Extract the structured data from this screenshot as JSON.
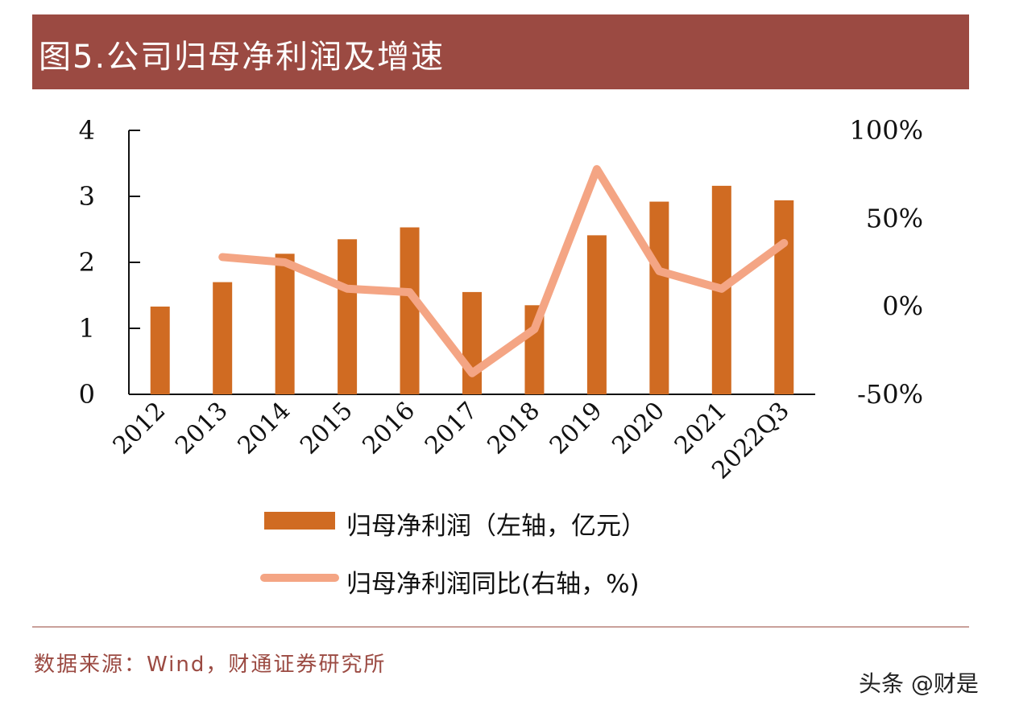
{
  "header": {
    "title": "图5.公司归母净利润及增速"
  },
  "chart_data": {
    "type": "bar+line",
    "title": "图5.公司归母净利润及增速",
    "categories": [
      "2012",
      "2013",
      "2014",
      "2015",
      "2016",
      "2017",
      "2018",
      "2019",
      "2020",
      "2021",
      "2022Q3"
    ],
    "series": [
      {
        "name": "归母净利润（左轴，亿元）",
        "type": "bar",
        "axis": "left",
        "color": "#d06b22",
        "values": [
          1.33,
          1.7,
          2.13,
          2.35,
          2.53,
          1.55,
          1.35,
          2.41,
          2.92,
          3.16,
          2.94
        ]
      },
      {
        "name": "归母净利润同比(右轴，%)",
        "type": "line",
        "axis": "right",
        "color": "#f4a584",
        "values": [
          null,
          28,
          25,
          10,
          8,
          -38,
          -13,
          78,
          20,
          10,
          36
        ]
      }
    ],
    "left_axis": {
      "ylim": [
        0,
        4
      ],
      "ticks": [
        "0",
        "1",
        "2",
        "3",
        "4"
      ]
    },
    "right_axis": {
      "ylim": [
        -50,
        100
      ],
      "ticks": [
        "-50%",
        "0%",
        "50%",
        "100%"
      ]
    },
    "grid": false,
    "legend": "bottom"
  },
  "source": "数据来源：Wind，财通证券研究所",
  "watermark": "头条 @财是"
}
